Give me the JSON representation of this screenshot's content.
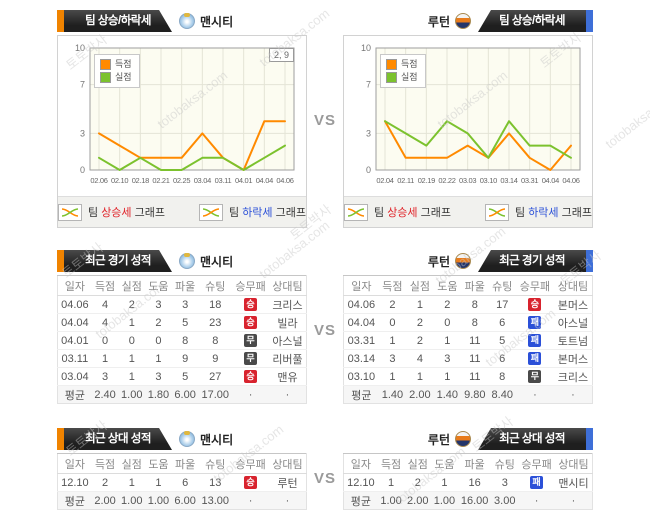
{
  "vs": "VS",
  "watermark": {
    "name": "토토박사",
    "domain": "totobaksa.com"
  },
  "sections": {
    "trend": {
      "title": "팀 상승/하락세",
      "teams": {
        "left": "맨시티",
        "right": "루턴"
      },
      "legend": {
        "scored": "득점",
        "conceded": "실점"
      },
      "annotation": "2, 9",
      "footer": {
        "prefix": "팀",
        "rise": "상승세",
        "fall": "하락세",
        "suffix": "그래프"
      }
    },
    "recent": {
      "title": "최근 경기 성적",
      "teams": {
        "left": "맨시티",
        "right": "루턴"
      }
    },
    "h2h": {
      "title": "최근 상대 성적",
      "teams": {
        "left": "맨시티",
        "right": "루턴"
      }
    }
  },
  "chart_data": [
    {
      "type": "line",
      "team": "맨시티",
      "title": "팀 상승/하락세 - 맨시티",
      "x": [
        "02.06",
        "02.10",
        "02.18",
        "02.21",
        "02.25",
        "03.04",
        "03.11",
        "04.01",
        "04.04",
        "04.06"
      ],
      "series": [
        {
          "name": "득점",
          "color": "#ff8a00",
          "values": [
            3,
            2,
            1,
            1,
            1,
            3,
            1,
            0,
            4,
            4
          ]
        },
        {
          "name": "실점",
          "color": "#7cc22e",
          "values": [
            1,
            0,
            1,
            0,
            0,
            1,
            1,
            0,
            1,
            2
          ]
        }
      ],
      "ylim": [
        0,
        10
      ],
      "yticks": [
        0,
        3,
        7,
        10
      ],
      "grid": true,
      "legend_position": "top-left",
      "annotation": "2, 9"
    },
    {
      "type": "line",
      "team": "루턴",
      "title": "팀 상승/하락세 - 루턴",
      "x": [
        "02.04",
        "02.11",
        "02.19",
        "02.22",
        "03.03",
        "03.10",
        "03.14",
        "03.31",
        "04.04",
        "04.06"
      ],
      "series": [
        {
          "name": "득점",
          "color": "#ff8a00",
          "values": [
            4,
            1,
            1,
            1,
            2,
            1,
            3,
            1,
            0,
            2
          ]
        },
        {
          "name": "실점",
          "color": "#7cc22e",
          "values": [
            4,
            3,
            2,
            4,
            3,
            1,
            4,
            2,
            2,
            1
          ]
        }
      ],
      "ylim": [
        0,
        10
      ],
      "yticks": [
        0,
        3,
        7,
        10
      ],
      "grid": true,
      "legend_position": "top-left"
    }
  ],
  "table_columns": [
    "일자",
    "득점",
    "실점",
    "도움",
    "파울",
    "슈팅",
    "승무패",
    "상대팀"
  ],
  "tables": {
    "recent_left": {
      "rows": [
        [
          "04.06",
          "4",
          "2",
          "3",
          "3",
          "18",
          "승",
          "크리스"
        ],
        [
          "04.04",
          "4",
          "1",
          "2",
          "5",
          "23",
          "승",
          "빌라"
        ],
        [
          "04.01",
          "0",
          "0",
          "0",
          "8",
          "8",
          "무",
          "아스널"
        ],
        [
          "03.11",
          "1",
          "1",
          "1",
          "9",
          "9",
          "무",
          "리버풀"
        ],
        [
          "03.04",
          "3",
          "1",
          "3",
          "5",
          "27",
          "승",
          "맨유"
        ]
      ],
      "avg": [
        "평균",
        "2.40",
        "1.00",
        "1.80",
        "6.00",
        "17.00",
        "·",
        "·"
      ]
    },
    "recent_right": {
      "rows": [
        [
          "04.06",
          "2",
          "1",
          "2",
          "8",
          "17",
          "승",
          "본머스"
        ],
        [
          "04.04",
          "0",
          "2",
          "0",
          "8",
          "6",
          "패",
          "아스널"
        ],
        [
          "03.31",
          "1",
          "2",
          "1",
          "11",
          "5",
          "패",
          "토트넘"
        ],
        [
          "03.14",
          "3",
          "4",
          "3",
          "11",
          "6",
          "패",
          "본머스"
        ],
        [
          "03.10",
          "1",
          "1",
          "1",
          "11",
          "8",
          "무",
          "크리스"
        ]
      ],
      "avg": [
        "평균",
        "1.40",
        "2.00",
        "1.40",
        "9.80",
        "8.40",
        "·",
        "·"
      ]
    },
    "h2h_left": {
      "rows": [
        [
          "12.10",
          "2",
          "1",
          "1",
          "6",
          "13",
          "승",
          "루턴"
        ]
      ],
      "avg": [
        "평균",
        "2.00",
        "1.00",
        "1.00",
        "6.00",
        "13.00",
        "·",
        "·"
      ]
    },
    "h2h_right": {
      "rows": [
        [
          "12.10",
          "1",
          "2",
          "1",
          "16",
          "3",
          "패",
          "맨시티"
        ]
      ],
      "avg": [
        "평균",
        "1.00",
        "2.00",
        "1.00",
        "16.00",
        "3.00",
        "·",
        "·"
      ]
    }
  },
  "result_colors": {
    "승": "#d8232e",
    "무": "#4a4a4a",
    "패": "#2b50d8"
  },
  "colors": {
    "accent_orange": "#f08300",
    "accent_blue": "#3e6fd8",
    "line_scored": "#ff8a00",
    "line_conceded": "#7cc22e",
    "rise_text": "#e02228",
    "fall_text": "#2b50d8"
  }
}
